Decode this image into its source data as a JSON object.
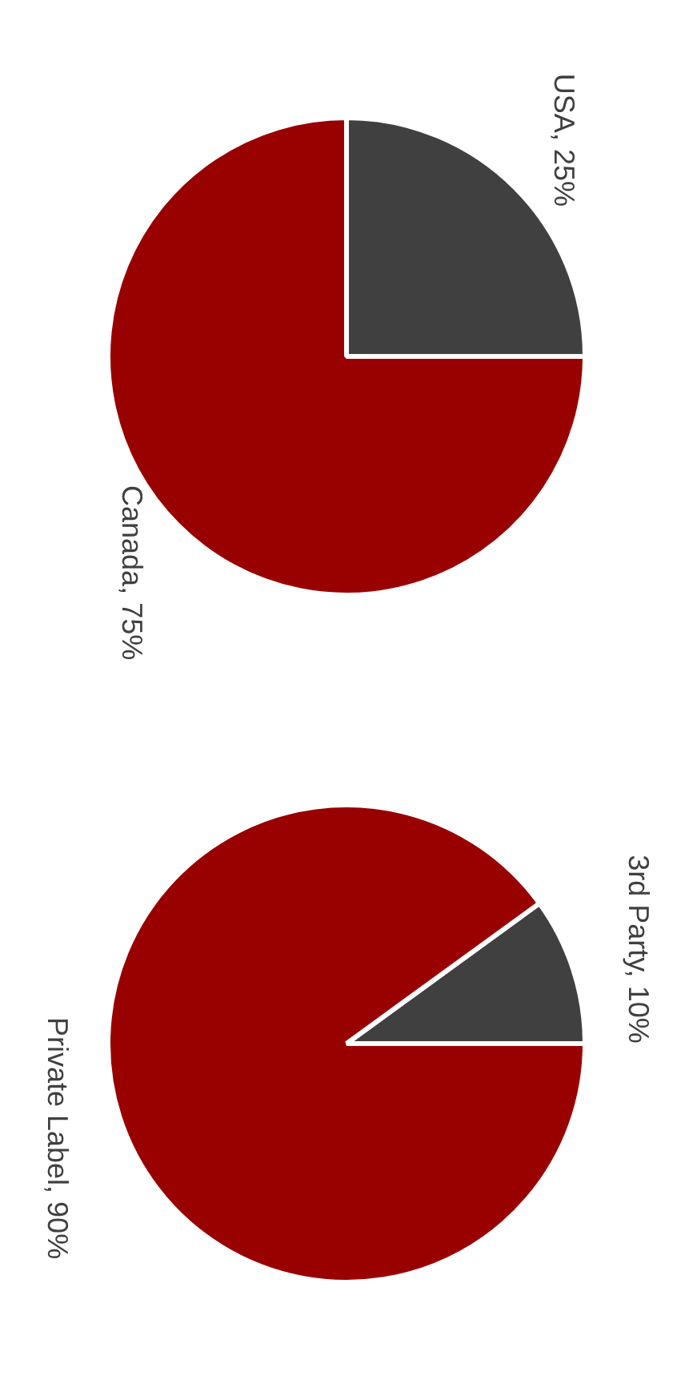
{
  "chart_data": [
    {
      "type": "pie",
      "categories": [
        "USA",
        "Canada"
      ],
      "values": [
        25,
        75
      ],
      "value_labels": [
        "25%",
        "75%"
      ],
      "colors": [
        "#404040",
        "#990000"
      ],
      "legend": false
    },
    {
      "type": "pie",
      "categories": [
        "3rd Party",
        "Private Label"
      ],
      "values": [
        10,
        90
      ],
      "value_labels": [
        "10%",
        "90%"
      ],
      "colors": [
        "#404040",
        "#990000"
      ],
      "legend": false
    }
  ]
}
